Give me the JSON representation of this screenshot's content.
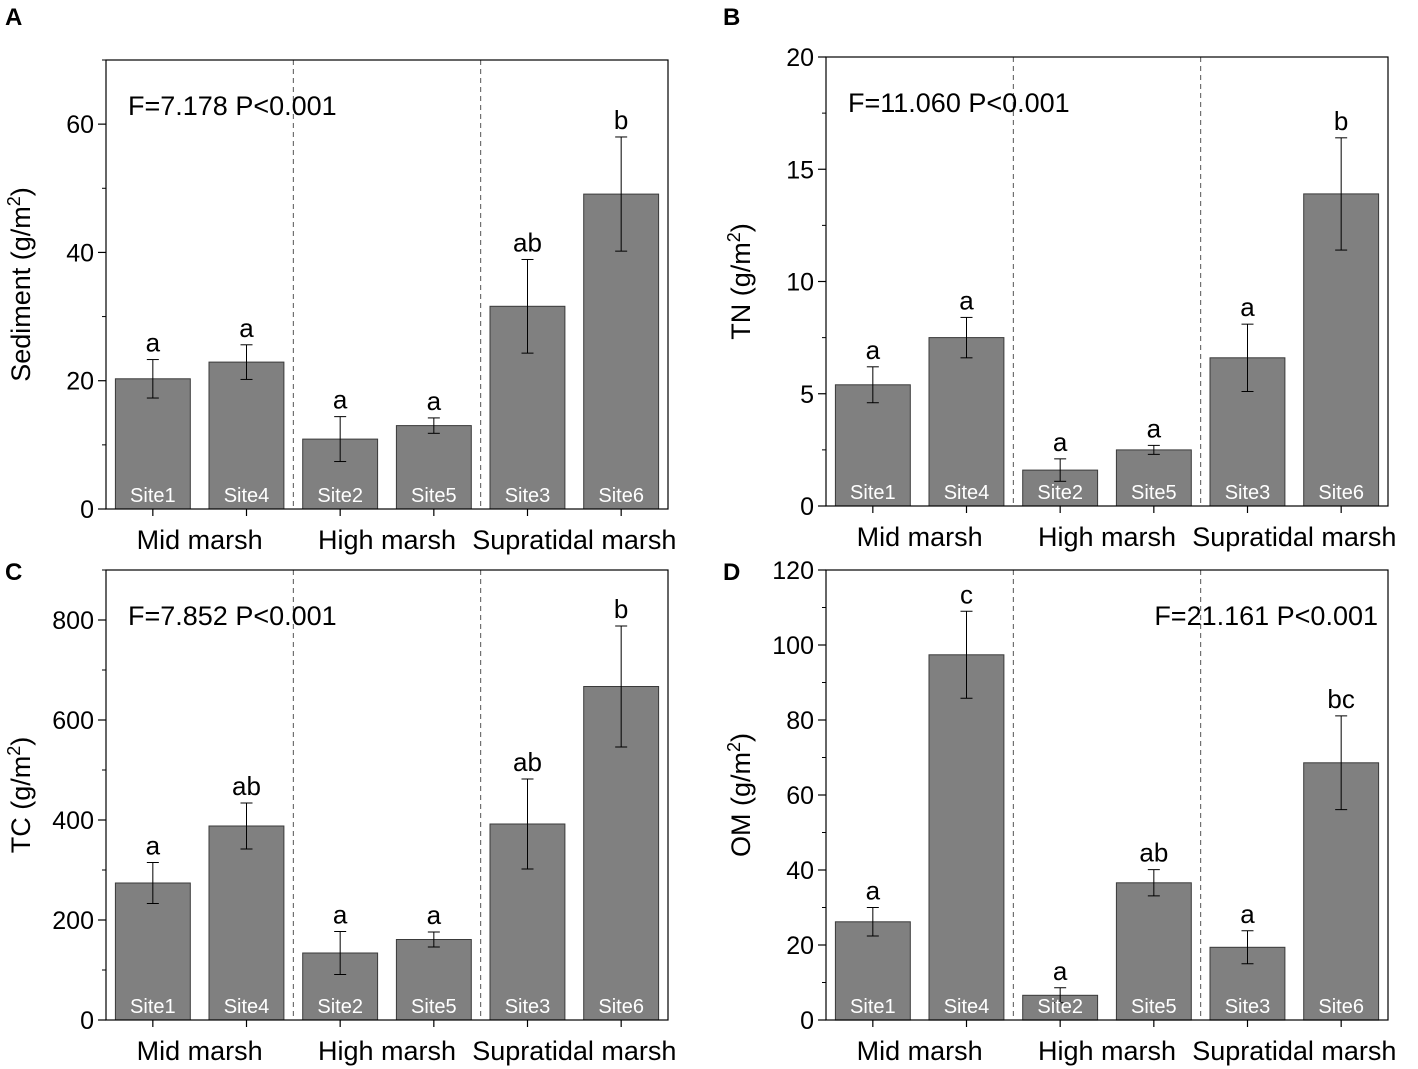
{
  "chart_data": [
    {
      "panel": "A",
      "type": "bar",
      "ylabel": "Sediment (g/m",
      "ylabel_sup": "2",
      "ylabel_close": ")",
      "ylim": [
        0,
        70
      ],
      "yticks": [
        0,
        20,
        40,
        60
      ],
      "stat_text": "F=7.178 P<0.001",
      "stat_position": "top-left",
      "groups": [
        "Mid marsh",
        "High marsh",
        "Supratidal marsh"
      ],
      "categories": [
        "Site1",
        "Site4",
        "Site2",
        "Site5",
        "Site3",
        "Site6"
      ],
      "values": [
        20.3,
        22.9,
        10.9,
        13.0,
        31.6,
        49.1
      ],
      "errors": [
        3.0,
        2.7,
        3.5,
        1.2,
        7.3,
        8.9
      ],
      "letters": [
        "a",
        "a",
        "a",
        "a",
        "ab",
        "b"
      ]
    },
    {
      "panel": "B",
      "type": "bar",
      "ylabel": "TN (g/m",
      "ylabel_sup": "2",
      "ylabel_close": ")",
      "ylim": [
        0,
        20
      ],
      "yticks": [
        0,
        5,
        10,
        15,
        20
      ],
      "stat_text": "F=11.060 P<0.001",
      "stat_position": "top-left",
      "groups": [
        "Mid marsh",
        "High marsh",
        "Supratidal marsh"
      ],
      "categories": [
        "Site1",
        "Site4",
        "Site2",
        "Site5",
        "Site3",
        "Site6"
      ],
      "values": [
        5.4,
        7.5,
        1.6,
        2.5,
        6.6,
        13.9
      ],
      "errors": [
        0.8,
        0.9,
        0.5,
        0.2,
        1.5,
        2.5
      ],
      "letters": [
        "a",
        "a",
        "a",
        "a",
        "a",
        "b"
      ]
    },
    {
      "panel": "C",
      "type": "bar",
      "ylabel": "TC (g/m",
      "ylabel_sup": "2",
      "ylabel_close": ")",
      "ylim": [
        0,
        900
      ],
      "yticks": [
        0,
        200,
        400,
        600,
        800
      ],
      "stat_text": "F=7.852 P<0.001",
      "stat_position": "top-left",
      "groups": [
        "Mid marsh",
        "High marsh",
        "Supratidal marsh"
      ],
      "categories": [
        "Site1",
        "Site4",
        "Site2",
        "Site5",
        "Site3",
        "Site6"
      ],
      "values": [
        274,
        388,
        134,
        161,
        392,
        667
      ],
      "errors": [
        41,
        46,
        43,
        15,
        90,
        121
      ],
      "letters": [
        "a",
        "ab",
        "a",
        "a",
        "ab",
        "b"
      ]
    },
    {
      "panel": "D",
      "type": "bar",
      "ylabel": "OM (g/m",
      "ylabel_sup": "2",
      "ylabel_close": ")",
      "ylim": [
        0,
        120
      ],
      "yticks": [
        0,
        20,
        40,
        60,
        80,
        100,
        120
      ],
      "stat_text": "F=21.161 P<0.001",
      "stat_position": "top-right",
      "groups": [
        "Mid marsh",
        "High marsh",
        "Supratidal marsh"
      ],
      "categories": [
        "Site1",
        "Site4",
        "Site2",
        "Site5",
        "Site3",
        "Site6"
      ],
      "values": [
        26.2,
        97.4,
        6.6,
        36.6,
        19.4,
        68.6
      ],
      "errors": [
        3.8,
        11.6,
        2.0,
        3.5,
        4.4,
        12.5
      ],
      "letters": [
        "a",
        "c",
        "a",
        "ab",
        "a",
        "bc"
      ]
    }
  ],
  "colors": {
    "bar_fill": "#808080",
    "bar_stroke": "#3a3a3a",
    "axis": "#000000",
    "divider": "#555555",
    "site_text": "#ffffff"
  }
}
